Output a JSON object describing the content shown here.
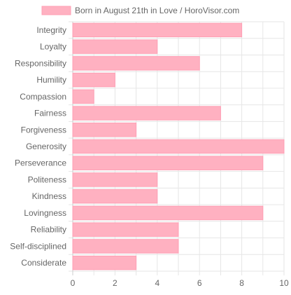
{
  "chart_data": {
    "type": "bar",
    "orientation": "horizontal",
    "legend": {
      "label": "Born in August 21th in Love / HoroVisor.com",
      "placement": "top-center"
    },
    "categories": [
      "Integrity",
      "Loyalty",
      "Responsibility",
      "Humility",
      "Compassion",
      "Fairness",
      "Forgiveness",
      "Generosity",
      "Perseverance",
      "Politeness",
      "Kindness",
      "Lovingness",
      "Reliability",
      "Self-disciplined",
      "Considerate"
    ],
    "series": [
      {
        "name": "Born in August 21th in Love / HoroVisor.com",
        "values": [
          8,
          4,
          6,
          2,
          1,
          7,
          3,
          10,
          9,
          4,
          4,
          9,
          5,
          5,
          3
        ]
      }
    ],
    "xlim": [
      0,
      10
    ],
    "xticks": [
      0,
      2,
      4,
      6,
      8,
      10
    ],
    "grid": true,
    "colors": {
      "bar_fill": "#ffb1c1",
      "bar_stroke": "#ff9fb4",
      "grid": "#e6e6e6",
      "text": "#666666"
    }
  }
}
